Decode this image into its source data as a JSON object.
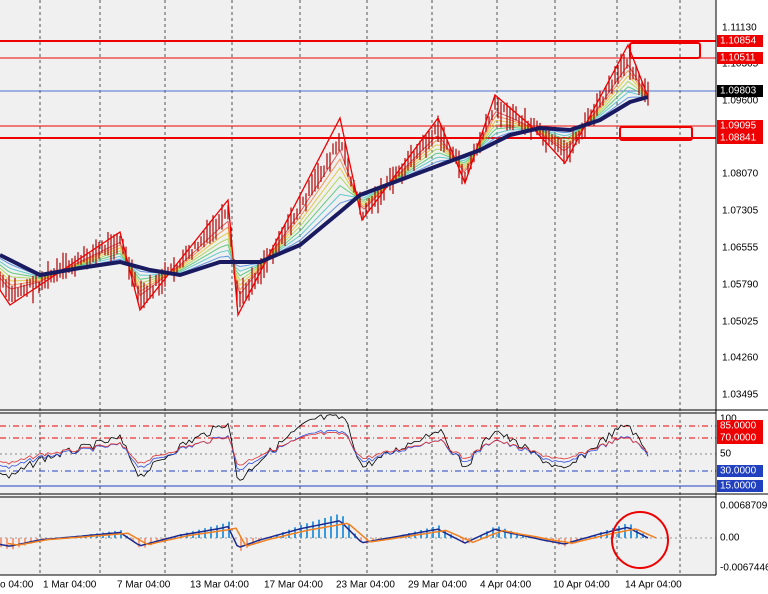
{
  "price_axis": [
    "1.11130",
    "1.10365",
    "1.09600",
    "1.08070",
    "1.07305",
    "1.06555",
    "1.05790",
    "1.05025",
    "1.04260",
    "1.03495"
  ],
  "price_levels": [
    "1.10854",
    "1.10511",
    "1.09803",
    "1.09095",
    "1.08841"
  ],
  "oscillator_axis": [
    "100",
    "85.0000",
    "70.0000",
    "50",
    "30.0000",
    "15.0000"
  ],
  "macd_axis": [
    "0.0068709",
    "0.00",
    "-0.0067446"
  ],
  "time_axis": [
    "o 04:00",
    "1 Mar 04:00",
    "7 Mar 04:00",
    "13 Mar 04:00",
    "17 Mar 04:00",
    "23 Mar 04:00",
    "29 Mar 04:00",
    "4 Apr 04:00",
    "10 Apr 04:00",
    "14 Apr 04:00"
  ]
}
